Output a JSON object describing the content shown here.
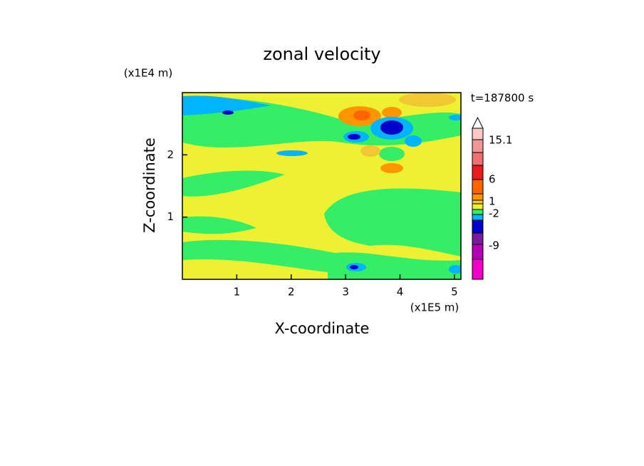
{
  "chart_data": {
    "type": "contour",
    "title": "zonal velocity",
    "x_label": "X-coordinate",
    "y_label": "Z-coordinate",
    "x_unit": "(x1E5 m)",
    "y_unit": "(x1E4 m)",
    "annotation": "t=187800 s",
    "xlim": [
      0,
      5.12
    ],
    "xticks": [
      1,
      2,
      3,
      4,
      5
    ],
    "ylim": [
      0,
      3
    ],
    "yticks": [
      1,
      2
    ],
    "colorbar": {
      "colors": [
        "#f000c8",
        "#b400b4",
        "#7a1a9c",
        "#0000c8",
        "#00b4ff",
        "#33ee66",
        "#f0f032",
        "#f0c832",
        "#ff9600",
        "#ff6400",
        "#e61e1e",
        "#f07070",
        "#f09696",
        "#ffc8c8"
      ],
      "ticks": [
        15.1,
        6,
        1,
        -2,
        -9
      ]
    }
  }
}
